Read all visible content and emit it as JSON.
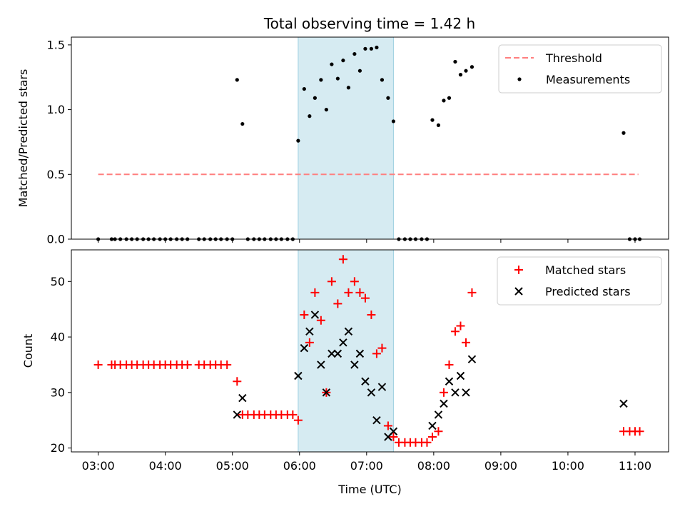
{
  "chart_data": {
    "title": "Total observing time = 1.42 h",
    "shaded_interval": {
      "start_h": 5.98,
      "end_h": 7.4
    },
    "x_axis": {
      "label": "Time (UTC)",
      "range_h": [
        2.6,
        11.5
      ],
      "ticks": [
        {
          "h": 3,
          "label": "03:00"
        },
        {
          "h": 4,
          "label": "04:00"
        },
        {
          "h": 5,
          "label": "05:00"
        },
        {
          "h": 6,
          "label": "06:00"
        },
        {
          "h": 7,
          "label": "07:00"
        },
        {
          "h": 8,
          "label": "08:00"
        },
        {
          "h": 9,
          "label": "09:00"
        },
        {
          "h": 10,
          "label": "10:00"
        },
        {
          "h": 11,
          "label": "11:00"
        }
      ]
    },
    "charts": [
      {
        "type": "scatter",
        "ylabel": "Matched/Predicted stars",
        "ylim": [
          0,
          1.56
        ],
        "yticks": [
          {
            "v": 0.0,
            "label": "0.0"
          },
          {
            "v": 0.5,
            "label": "0.5"
          },
          {
            "v": 1.0,
            "label": "1.0"
          },
          {
            "v": 1.5,
            "label": "1.5"
          }
        ],
        "legend": {
          "position": "top-right",
          "entries": [
            {
              "label": "Threshold",
              "style": "dashed",
              "color": "#ff7f7f"
            },
            {
              "label": "Measurements",
              "style": "dot",
              "color": "#000000"
            }
          ]
        },
        "threshold": {
          "value": 0.5,
          "x_start_h": 3.0,
          "x_end_h": 11.05,
          "color": "#ff7f7f"
        },
        "measurements": [
          [
            3.0,
            0
          ],
          [
            3.2,
            0
          ],
          [
            3.25,
            0
          ],
          [
            3.33,
            0
          ],
          [
            3.42,
            0
          ],
          [
            3.5,
            0
          ],
          [
            3.58,
            0
          ],
          [
            3.67,
            0
          ],
          [
            3.75,
            0
          ],
          [
            3.83,
            0
          ],
          [
            3.92,
            0
          ],
          [
            4.0,
            0
          ],
          [
            4.08,
            0
          ],
          [
            4.17,
            0
          ],
          [
            4.25,
            0
          ],
          [
            4.33,
            0
          ],
          [
            4.5,
            0
          ],
          [
            4.58,
            0
          ],
          [
            4.67,
            0
          ],
          [
            4.75,
            0
          ],
          [
            4.83,
            0
          ],
          [
            4.92,
            0
          ],
          [
            5.0,
            0
          ],
          [
            5.07,
            1.23
          ],
          [
            5.15,
            0.89
          ],
          [
            5.23,
            0
          ],
          [
            5.32,
            0
          ],
          [
            5.4,
            0
          ],
          [
            5.48,
            0
          ],
          [
            5.57,
            0
          ],
          [
            5.65,
            0
          ],
          [
            5.73,
            0
          ],
          [
            5.82,
            0
          ],
          [
            5.9,
            0
          ],
          [
            5.98,
            0.76
          ],
          [
            6.07,
            1.16
          ],
          [
            6.15,
            0.95
          ],
          [
            6.23,
            1.09
          ],
          [
            6.32,
            1.23
          ],
          [
            6.4,
            1.0
          ],
          [
            6.48,
            1.35
          ],
          [
            6.57,
            1.24
          ],
          [
            6.65,
            1.38
          ],
          [
            6.73,
            1.17
          ],
          [
            6.82,
            1.43
          ],
          [
            6.9,
            1.3
          ],
          [
            6.98,
            1.47
          ],
          [
            7.07,
            1.47
          ],
          [
            7.15,
            1.48
          ],
          [
            7.23,
            1.23
          ],
          [
            7.32,
            1.09
          ],
          [
            7.4,
            0.91
          ],
          [
            7.48,
            0
          ],
          [
            7.57,
            0
          ],
          [
            7.65,
            0
          ],
          [
            7.73,
            0
          ],
          [
            7.82,
            0
          ],
          [
            7.9,
            0
          ],
          [
            7.98,
            0.92
          ],
          [
            8.07,
            0.88
          ],
          [
            8.15,
            1.07
          ],
          [
            8.23,
            1.09
          ],
          [
            8.32,
            1.37
          ],
          [
            8.4,
            1.27
          ],
          [
            8.48,
            1.3
          ],
          [
            8.57,
            1.33
          ],
          [
            10.83,
            0.82
          ],
          [
            10.92,
            0
          ],
          [
            11.0,
            0
          ],
          [
            11.07,
            0
          ]
        ]
      },
      {
        "type": "scatter",
        "ylabel": "Count",
        "ylim": [
          19.3,
          55.7
        ],
        "yticks": [
          {
            "v": 20,
            "label": "20"
          },
          {
            "v": 30,
            "label": "30"
          },
          {
            "v": 40,
            "label": "40"
          },
          {
            "v": 50,
            "label": "50"
          }
        ],
        "legend": {
          "position": "top-right",
          "entries": [
            {
              "label": "Matched stars",
              "style": "plus",
              "color": "#ff0000"
            },
            {
              "label": "Predicted stars",
              "style": "x",
              "color": "#000000"
            }
          ]
        },
        "series": [
          {
            "name": "Matched stars",
            "marker": "plus",
            "color": "#ff0000",
            "points": [
              [
                3.0,
                35
              ],
              [
                3.2,
                35
              ],
              [
                3.25,
                35
              ],
              [
                3.33,
                35
              ],
              [
                3.42,
                35
              ],
              [
                3.5,
                35
              ],
              [
                3.58,
                35
              ],
              [
                3.67,
                35
              ],
              [
                3.75,
                35
              ],
              [
                3.83,
                35
              ],
              [
                3.92,
                35
              ],
              [
                4.0,
                35
              ],
              [
                4.08,
                35
              ],
              [
                4.17,
                35
              ],
              [
                4.25,
                35
              ],
              [
                4.33,
                35
              ],
              [
                4.5,
                35
              ],
              [
                4.58,
                35
              ],
              [
                4.67,
                35
              ],
              [
                4.75,
                35
              ],
              [
                4.83,
                35
              ],
              [
                4.92,
                35
              ],
              [
                5.07,
                32
              ],
              [
                5.15,
                26
              ],
              [
                5.23,
                26
              ],
              [
                5.32,
                26
              ],
              [
                5.4,
                26
              ],
              [
                5.48,
                26
              ],
              [
                5.57,
                26
              ],
              [
                5.65,
                26
              ],
              [
                5.73,
                26
              ],
              [
                5.82,
                26
              ],
              [
                5.9,
                26
              ],
              [
                5.98,
                25
              ],
              [
                6.07,
                44
              ],
              [
                6.15,
                39
              ],
              [
                6.23,
                48
              ],
              [
                6.32,
                43
              ],
              [
                6.4,
                30
              ],
              [
                6.48,
                50
              ],
              [
                6.57,
                46
              ],
              [
                6.65,
                54
              ],
              [
                6.73,
                48
              ],
              [
                6.82,
                50
              ],
              [
                6.9,
                48
              ],
              [
                6.98,
                47
              ],
              [
                7.07,
                44
              ],
              [
                7.15,
                37
              ],
              [
                7.23,
                38
              ],
              [
                7.32,
                24
              ],
              [
                7.4,
                22
              ],
              [
                7.48,
                21
              ],
              [
                7.57,
                21
              ],
              [
                7.65,
                21
              ],
              [
                7.73,
                21
              ],
              [
                7.82,
                21
              ],
              [
                7.9,
                21
              ],
              [
                7.98,
                22
              ],
              [
                8.07,
                23
              ],
              [
                8.15,
                30
              ],
              [
                8.23,
                35
              ],
              [
                8.32,
                41
              ],
              [
                8.4,
                42
              ],
              [
                8.48,
                39
              ],
              [
                8.57,
                48
              ],
              [
                10.83,
                23
              ],
              [
                10.92,
                23
              ],
              [
                11.0,
                23
              ],
              [
                11.07,
                23
              ]
            ]
          },
          {
            "name": "Predicted stars",
            "marker": "x",
            "color": "#000000",
            "points": [
              [
                5.07,
                26
              ],
              [
                5.15,
                29
              ],
              [
                5.98,
                33
              ],
              [
                6.07,
                38
              ],
              [
                6.15,
                41
              ],
              [
                6.23,
                44
              ],
              [
                6.32,
                35
              ],
              [
                6.4,
                30
              ],
              [
                6.48,
                37
              ],
              [
                6.57,
                37
              ],
              [
                6.65,
                39
              ],
              [
                6.73,
                41
              ],
              [
                6.82,
                35
              ],
              [
                6.9,
                37
              ],
              [
                6.98,
                32
              ],
              [
                7.07,
                30
              ],
              [
                7.15,
                25
              ],
              [
                7.23,
                31
              ],
              [
                7.32,
                22
              ],
              [
                7.4,
                23
              ],
              [
                7.98,
                24
              ],
              [
                8.07,
                26
              ],
              [
                8.15,
                28
              ],
              [
                8.23,
                32
              ],
              [
                8.32,
                30
              ],
              [
                8.4,
                33
              ],
              [
                8.48,
                30
              ],
              [
                8.57,
                36
              ],
              [
                10.83,
                28
              ]
            ]
          }
        ]
      }
    ]
  }
}
